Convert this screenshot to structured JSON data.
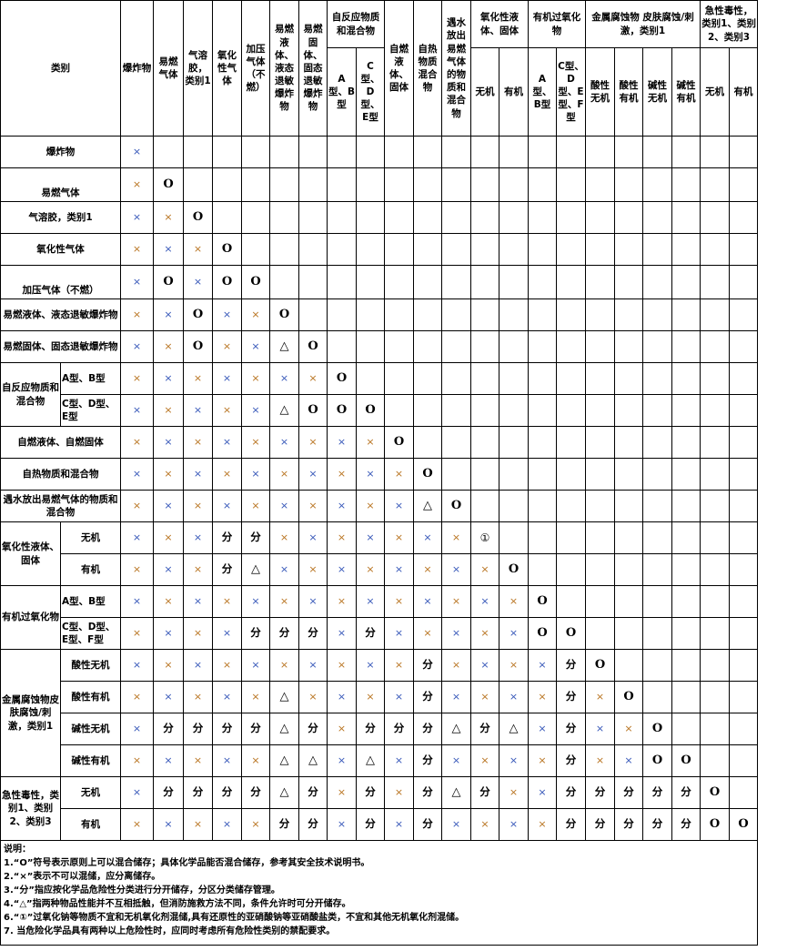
{
  "header": {
    "category_label": "类别",
    "columns": [
      {
        "label": "爆炸物"
      },
      {
        "label": "易燃气体"
      },
      {
        "label": "气溶胶，类别1"
      },
      {
        "label": "氧化性气体"
      },
      {
        "label": "加压气体（不燃）"
      },
      {
        "label": "易燃液体、液态退敏爆炸物"
      },
      {
        "label": "易燃固体、固态退敏爆炸物"
      },
      {
        "label": "自反应物质和混合物",
        "sub": [
          "A型、B型",
          "C型、D型、E型"
        ]
      },
      {
        "label": "自燃液体、固体"
      },
      {
        "label": "自热物质混合物"
      },
      {
        "label": "遇水放出易燃气体的物质和混合物"
      },
      {
        "label": "氧化性液体、固体",
        "sub": [
          "无机",
          "有机"
        ]
      },
      {
        "label": "有机过氧化物",
        "sub": [
          "A型、B型",
          "C型、D型、E型、F型"
        ]
      },
      {
        "label": "金属腐蚀物 皮肤腐蚀/刺激，类别1",
        "sub": [
          "酸性无机",
          "酸性有机",
          "碱性无机",
          "碱性有机"
        ]
      },
      {
        "label": "急性毒性，类别1、类别2、类别3",
        "sub": [
          "无机",
          "有机"
        ]
      }
    ]
  },
  "rows": [
    {
      "label": "爆炸物",
      "cells": [
        "×"
      ]
    },
    {
      "label": "易燃气体",
      "cells": [
        "×",
        "O"
      ]
    },
    {
      "label": "气溶胶，类别1",
      "cells": [
        "×",
        "×",
        "O"
      ]
    },
    {
      "label": "氧化性气体",
      "cells": [
        "×",
        "×",
        "×",
        "O"
      ]
    },
    {
      "label": "加压气体（不燃）",
      "cells": [
        "×",
        "O",
        "×",
        "O",
        "O"
      ]
    },
    {
      "label": "易燃液体、液态退敏爆炸物",
      "cells": [
        "×",
        "×",
        "O",
        "×",
        "×",
        "O"
      ]
    },
    {
      "label": "易燃固体、固态退敏爆炸物",
      "cells": [
        "×",
        "×",
        "O",
        "×",
        "×",
        "△",
        "O"
      ]
    },
    {
      "group": "自反应物质和混合物",
      "sub": "A型、B型",
      "cells": [
        "×",
        "×",
        "×",
        "×",
        "×",
        "×",
        "×",
        "O"
      ]
    },
    {
      "group": "自反应物质和混合物",
      "sub": "C型、D型、E型",
      "cells": [
        "×",
        "×",
        "×",
        "×",
        "×",
        "△",
        "O",
        "O",
        "O"
      ]
    },
    {
      "label": "自燃液体、自燃固体",
      "cells": [
        "×",
        "×",
        "×",
        "×",
        "×",
        "×",
        "×",
        "×",
        "×",
        "O"
      ]
    },
    {
      "label": "自热物质和混合物",
      "cells": [
        "×",
        "×",
        "×",
        "×",
        "×",
        "×",
        "×",
        "×",
        "×",
        "×",
        "O"
      ]
    },
    {
      "label": "遇水放出易燃气体的物质和混合物",
      "cells": [
        "×",
        "×",
        "×",
        "×",
        "×",
        "×",
        "×",
        "×",
        "×",
        "×",
        "△",
        "O"
      ]
    },
    {
      "group": "氧化性液体、固体",
      "sub": "无机",
      "cells": [
        "×",
        "×",
        "×",
        "分",
        "分",
        "×",
        "×",
        "×",
        "×",
        "×",
        "×",
        "×",
        "①"
      ]
    },
    {
      "group": "氧化性液体、固体",
      "sub": "有机",
      "cells": [
        "×",
        "×",
        "×",
        "分",
        "△",
        "×",
        "×",
        "×",
        "×",
        "×",
        "×",
        "×",
        "×",
        "O"
      ]
    },
    {
      "group": "有机过氧化物",
      "sub": "A型、B型",
      "cells": [
        "×",
        "×",
        "×",
        "×",
        "×",
        "×",
        "×",
        "×",
        "×",
        "×",
        "×",
        "×",
        "×",
        "×",
        "O"
      ]
    },
    {
      "group": "有机过氧化物",
      "sub": "C型、D型、E型、F型",
      "cells": [
        "×",
        "×",
        "×",
        "×",
        "分",
        "分",
        "分",
        "×",
        "分",
        "×",
        "×",
        "×",
        "×",
        "×",
        "O",
        "O"
      ]
    },
    {
      "group": "金属腐蚀物皮肤腐蚀/刺激，类别1",
      "sub": "酸性无机",
      "cells": [
        "×",
        "×",
        "×",
        "×",
        "×",
        "×",
        "×",
        "×",
        "×",
        "×",
        "分",
        "×",
        "×",
        "×",
        "×",
        "分",
        "O"
      ]
    },
    {
      "group": "金属腐蚀物皮肤腐蚀/刺激，类别1",
      "sub": "酸性有机",
      "cells": [
        "×",
        "×",
        "×",
        "×",
        "×",
        "△",
        "×",
        "×",
        "×",
        "×",
        "分",
        "×",
        "×",
        "×",
        "×",
        "分",
        "×",
        "O"
      ]
    },
    {
      "group": "金属腐蚀物皮肤腐蚀/刺激，类别1",
      "sub": "碱性无机",
      "cells": [
        "×",
        "分",
        "分",
        "分",
        "分",
        "△",
        "分",
        "×",
        "分",
        "分",
        "分",
        "△",
        "分",
        "△",
        "×",
        "分",
        "×",
        "×",
        "O"
      ]
    },
    {
      "group": "金属腐蚀物皮肤腐蚀/刺激，类别1",
      "sub": "碱性有机",
      "cells": [
        "×",
        "×",
        "×",
        "×",
        "×",
        "△",
        "△",
        "×",
        "△",
        "×",
        "分",
        "×",
        "×",
        "×",
        "×",
        "分",
        "×",
        "×",
        "O",
        "O"
      ]
    },
    {
      "group": "急性毒性，类别1、类别2、类别3",
      "sub": "无机",
      "cells": [
        "×",
        "分",
        "分",
        "分",
        "分",
        "△",
        "分",
        "×",
        "分",
        "×",
        "分",
        "△",
        "分",
        "×",
        "×",
        "分",
        "分",
        "分",
        "分",
        "分",
        "O"
      ]
    },
    {
      "group": "急性毒性，类别1、类别2、类别3",
      "sub": "有机",
      "cells": [
        "×",
        "×",
        "×",
        "×",
        "×",
        "分",
        "分",
        "×",
        "分",
        "×",
        "分",
        "×",
        "×",
        "×",
        "×",
        "分",
        "分",
        "分",
        "分",
        "分",
        "O",
        "O"
      ]
    }
  ],
  "notes": {
    "title": "说明：",
    "items": [
      "1.“O”符号表示原则上可以混合储存；具体化学品能否混合储存，参考其安全技术说明书。",
      "2.“×”表示不可以混储，应分离储存。",
      "3.“分”指应按化学品危险性分类进行分开储存，分区分类储存管理。",
      "4.“△”指两种物品性能并不互相抵触，但消防施救方法不同，条件允许时可分开储存。",
      "6.“①”过氧化钠等物质不宜和无机氧化剂混储,具有还原性的亚硝酸钠等亚硝酸盐类，不宜和其他无机氧化剂混储。",
      "7. 当危险化学品具有两种以上危险性时，应同时考虑所有危险性类别的禁配要求。"
    ]
  },
  "colors": {
    "cross_blue": "#3556b8",
    "cross_orange": "#b8731f",
    "border": "#000000"
  }
}
